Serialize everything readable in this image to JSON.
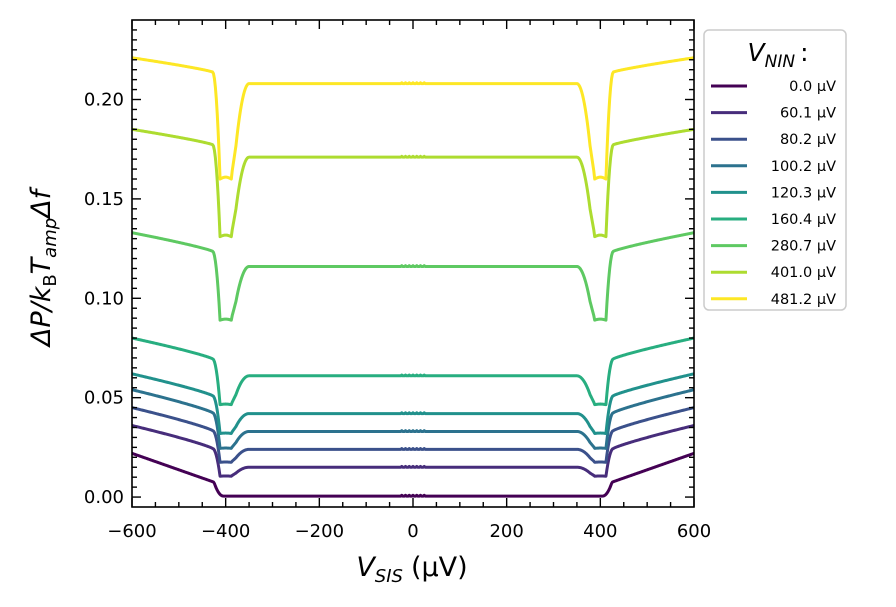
{
  "chart_data": {
    "type": "line",
    "xlabel_symbol": "V",
    "xlabel_sub": "SIS",
    "xlabel_unit": "(µV)",
    "ylabel_parts": [
      "ΔP/k",
      "B",
      "T",
      "amp",
      "Δf"
    ],
    "xlim": [
      -600,
      600
    ],
    "ylim": [
      -0.005,
      0.24
    ],
    "xticks": [
      -600,
      -400,
      -200,
      0,
      200,
      400,
      600
    ],
    "xtick_labels": [
      "−600",
      "−400",
      "−200",
      "0",
      "200",
      "400",
      "600"
    ],
    "yticks": [
      0.0,
      0.05,
      0.1,
      0.15,
      0.2
    ],
    "ytick_labels": [
      "0.00",
      "0.05",
      "0.10",
      "0.15",
      "0.20"
    ],
    "legend_title_symbol": "V",
    "legend_title_sub": "NIN",
    "legend_title_suffix": ":",
    "legend_position": "outside-right",
    "series": [
      {
        "name": "0.0 µV",
        "color": "#440154",
        "plateau": 0.0005,
        "edge": 0.022,
        "dip": null
      },
      {
        "name": "60.1 µV",
        "color": "#472d7b",
        "plateau": 0.015,
        "edge": 0.036,
        "dip": 0.0105
      },
      {
        "name": "80.2 µV",
        "color": "#3b518b",
        "plateau": 0.024,
        "edge": 0.045,
        "dip": 0.0175
      },
      {
        "name": "100.2 µV",
        "color": "#2c728e",
        "plateau": 0.033,
        "edge": 0.054,
        "dip": 0.0245
      },
      {
        "name": "120.3 µV",
        "color": "#21918c",
        "plateau": 0.042,
        "edge": 0.062,
        "dip": 0.032
      },
      {
        "name": "160.4 µV",
        "color": "#28ae80",
        "plateau": 0.061,
        "edge": 0.08,
        "dip": 0.0465
      },
      {
        "name": "280.7 µV",
        "color": "#5ec962",
        "plateau": 0.116,
        "edge": 0.133,
        "dip": 0.089
      },
      {
        "name": "401.0 µV",
        "color": "#addc30",
        "plateau": 0.171,
        "edge": 0.185,
        "dip": 0.131
      },
      {
        "name": "481.2 µV",
        "color": "#fde725",
        "plateau": 0.208,
        "edge": 0.221,
        "dip": 0.16
      }
    ]
  }
}
